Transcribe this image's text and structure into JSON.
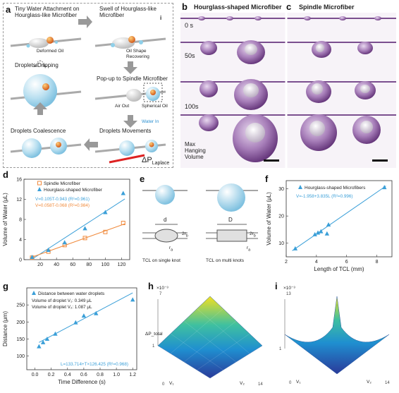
{
  "panel_labels": {
    "a": "a",
    "b": "b",
    "c": "c",
    "d": "d",
    "e": "e",
    "f": "f",
    "g": "g",
    "h": "h",
    "i": "i"
  },
  "panel_a": {
    "steps": [
      "Tiny Water Attachment on Hourglass-like Microfiber",
      "Swell of Hourglass-like Microfiber",
      "Droplets Dripping",
      "Pop-up to Spindle Microfiber",
      "Droplets Coalescence",
      "Droplets Movements"
    ],
    "labels": {
      "deformed_oil": "Deformed Oil",
      "oil_shape_recovering": "Oil Shape Recovering",
      "air_out": "Air Out",
      "spherical_oil": "Spherical Oil",
      "water_in": "Water In",
      "delta_p": "ΔP",
      "delta_p_sub": "Laplace",
      "inset_i": "i"
    }
  },
  "panel_b": {
    "title": "Hourglass-shaped Microfiber",
    "times": [
      "0 s",
      "50s",
      "100s"
    ],
    "max_label_1": "Max",
    "max_label_2": "Hanging",
    "max_label_3": "Volume"
  },
  "panel_c": {
    "title": "Spindle Microfiber"
  },
  "panel_e": {
    "d_label": "d",
    "D_label": "D",
    "rb_left": "2r",
    "rb_sub": "b",
    "ra": "r",
    "ra_sub": "a",
    "caption_left": "TCL on single knot",
    "caption_right": "TCL on multi knots"
  },
  "panel_h": {
    "exp_label": "×10⁻³",
    "z_label": "ΔP_total",
    "x_label": "V₁",
    "y_label": "V₂"
  },
  "panel_i": {
    "exp_label": "×10⁻³",
    "x_label": "V₁",
    "y_label": "V₂"
  },
  "chart_data": [
    {
      "id": "d",
      "type": "scatter",
      "xlabel": "",
      "ylabel": "Volume of Water (μL)",
      "xlim": [
        0,
        130
      ],
      "ylim": [
        0,
        16
      ],
      "xticks": [
        20,
        40,
        60,
        80,
        100,
        120
      ],
      "yticks": [
        0,
        4,
        8,
        12,
        16
      ],
      "series": [
        {
          "name": "Spindle Microfiber",
          "color": "#f08a3c",
          "marker": "square",
          "x": [
            10,
            30,
            50,
            75,
            100,
            122
          ],
          "y": [
            0.4,
            1.6,
            2.9,
            4.3,
            5.5,
            7.3
          ]
        },
        {
          "name": "Hourglass-shaped Microfiber",
          "color": "#3a9fd8",
          "marker": "triangle",
          "x": [
            10,
            30,
            50,
            75,
            100,
            122
          ],
          "y": [
            0.5,
            1.9,
            3.4,
            6.2,
            9.4,
            13.2
          ]
        }
      ],
      "fit_labels": [
        "V=0.105T-0.943 (R²=0.961)",
        "V=0.058T-0.068 (R²=0.984)"
      ],
      "fit_colors": [
        "#3a9fd8",
        "#f08a3c"
      ],
      "fits": [
        {
          "slope": 0.105,
          "intercept": -0.943,
          "color": "#3a9fd8"
        },
        {
          "slope": 0.058,
          "intercept": -0.068,
          "color": "#f08a3c"
        }
      ]
    },
    {
      "id": "f",
      "type": "scatter",
      "xlabel": "Length of TCL (mm)",
      "ylabel": "Volume of Water (μL)",
      "xlim": [
        2,
        9
      ],
      "ylim": [
        5,
        33
      ],
      "xticks": [
        2,
        4,
        6,
        8
      ],
      "yticks": [
        10,
        20,
        30
      ],
      "series": [
        {
          "name": "Hourglass-shaped Microfibers",
          "color": "#3a9fd8",
          "marker": "triangle",
          "x": [
            2.6,
            3.9,
            4.1,
            4.3,
            4.7,
            4.8,
            8.5
          ],
          "y": [
            8.0,
            13.2,
            13.8,
            14.3,
            13.5,
            16.8,
            30.5
          ]
        }
      ],
      "fit_labels": [
        "V=-1.958+3.835L (R²=0.996)"
      ],
      "fit_colors": [
        "#3a9fd8"
      ],
      "fits": [
        {
          "slope": 3.835,
          "intercept": -1.958,
          "color": "#3a9fd8"
        }
      ]
    },
    {
      "id": "g",
      "type": "scatter",
      "xlabel": "Time Difference (s)",
      "ylabel": "Distance (μm)",
      "xlim": [
        -0.1,
        1.25
      ],
      "ylim": [
        60,
        300
      ],
      "xticks": [
        0.0,
        0.2,
        0.4,
        0.6,
        0.8,
        1.0,
        1.2
      ],
      "yticks": [
        100,
        150,
        200,
        250
      ],
      "series": [
        {
          "name": "Distance between water droplets",
          "color": "#3a9fd8",
          "marker": "triangle",
          "x": [
            0.05,
            0.1,
            0.15,
            0.25,
            0.5,
            0.6,
            0.75,
            1.2
          ],
          "y": [
            128,
            140,
            150,
            165,
            198,
            218,
            225,
            265
          ]
        }
      ],
      "annotations": [
        "Volume of droplet V₁: 0.349 μL",
        "Volume of droplet V₂: 1.087 μL"
      ],
      "fit_labels": [
        "L=133.714+T×126.425 (R²=0.968)"
      ],
      "fit_colors": [
        "#3a9fd8"
      ],
      "fits": [
        {
          "slope": 126.425,
          "intercept": 133.714,
          "color": "#3a9fd8"
        }
      ]
    }
  ]
}
